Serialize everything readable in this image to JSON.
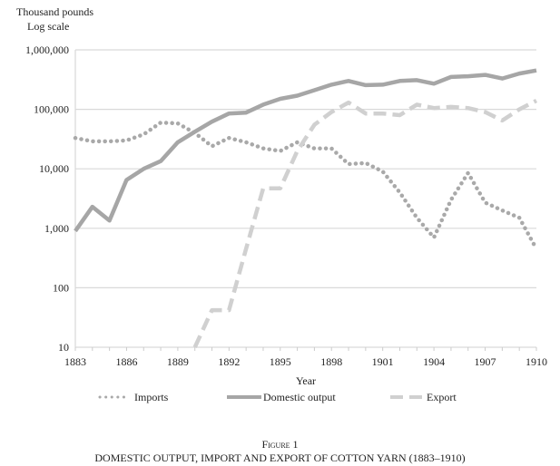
{
  "chart_data": {
    "type": "line",
    "ylabel_lines": [
      "Thousand pounds",
      "Log scale"
    ],
    "xlabel": "Year",
    "yscale": "log",
    "ylim": [
      10,
      1000000
    ],
    "xlim": [
      1883,
      1910
    ],
    "y_ticks": [
      10,
      100,
      1000,
      10000,
      100000,
      1000000
    ],
    "y_tick_labels": [
      "10",
      "100",
      "1,000",
      "10,000",
      "100,000",
      "1,000,000"
    ],
    "x_ticks": [
      "1883",
      "1886",
      "1889",
      "1892",
      "1895",
      "1898",
      "1901",
      "1904",
      "1907",
      "1910"
    ],
    "grid": true,
    "legend_position": "bottom",
    "series": [
      {
        "name": "Imports",
        "style": "dotted",
        "color": "#a9a9a9",
        "x": [
          1883,
          1884,
          1885,
          1886,
          1887,
          1888,
          1889,
          1890,
          1891,
          1892,
          1893,
          1894,
          1895,
          1896,
          1897,
          1898,
          1899,
          1900,
          1901,
          1902,
          1903,
          1904,
          1905,
          1906,
          1907,
          1908,
          1909,
          1910
        ],
        "values": [
          33000,
          29000,
          29000,
          30000,
          38000,
          60000,
          58000,
          40000,
          24000,
          33000,
          28000,
          22000,
          20000,
          28000,
          22000,
          22000,
          12000,
          12500,
          9000,
          4000,
          1500,
          700,
          3000,
          8500,
          2700,
          2000,
          1500,
          450
        ]
      },
      {
        "name": "Domestic output",
        "style": "solid",
        "color": "#a6a6a6",
        "x": [
          1883,
          1884,
          1885,
          1886,
          1887,
          1888,
          1889,
          1890,
          1891,
          1892,
          1893,
          1894,
          1895,
          1896,
          1897,
          1898,
          1899,
          1900,
          1901,
          1902,
          1903,
          1904,
          1905,
          1906,
          1907,
          1908,
          1909,
          1910
        ],
        "values": [
          900,
          2300,
          1350,
          6500,
          10000,
          13500,
          28000,
          42000,
          62000,
          85000,
          88000,
          120000,
          150000,
          170000,
          210000,
          260000,
          300000,
          255000,
          260000,
          300000,
          310000,
          270000,
          350000,
          360000,
          380000,
          330000,
          400000,
          450000
        ]
      },
      {
        "name": "Export",
        "style": "dashed",
        "color": "#d0d0d0",
        "x": [
          1890,
          1891,
          1892,
          1893,
          1894,
          1895,
          1896,
          1897,
          1898,
          1899,
          1900,
          1901,
          1902,
          1903,
          1904,
          1905,
          1906,
          1907,
          1908,
          1909,
          1910
        ],
        "values": [
          10,
          42,
          42,
          450,
          4700,
          4700,
          20000,
          55000,
          90000,
          130000,
          85000,
          85000,
          80000,
          120000,
          105000,
          110000,
          105000,
          90000,
          65000,
          100000,
          140000
        ]
      }
    ]
  },
  "caption": {
    "figure_label": "Figure 1",
    "title": "DOMESTIC OUTPUT, IMPORT AND EXPORT OF COTTON YARN (1883–1910)"
  }
}
